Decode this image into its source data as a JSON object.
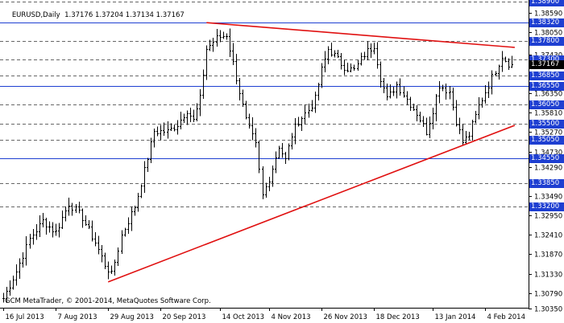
{
  "chart_header": {
    "symbol_timeframe": "EURUSD,Daily",
    "ohlc": "1.37176 1.37204 1.37134 1.37167"
  },
  "footer_text": "GCM MetaTrader, © 2001-2014, MetaQuotes Software Corp.",
  "colors": {
    "background": "#ffffff",
    "bars": "#000000",
    "horizontal_lines": "#1e3fd1",
    "trend_lines": "#e01010",
    "price_tag_bg": "#1e3fd1",
    "price_tag_text": "#ffffff",
    "current_price_bg": "#000000",
    "grid": "#808080"
  },
  "chart_data": {
    "type": "ohlc",
    "symbol": "EURUSD",
    "timeframe": "Daily",
    "ylim": [
      1.3038,
      1.3895
    ],
    "price_axis_ticks": [
      "1.38590",
      "1.38050",
      "1.37430",
      "1.36890",
      "1.36350",
      "1.35810",
      "1.35270",
      "1.34730",
      "1.34290",
      "1.33490",
      "1.32950",
      "1.32410",
      "1.31870",
      "1.31330",
      "1.30790",
      "1.30350"
    ],
    "time_axis_labels": [
      "16 Jul 2013",
      "7 Aug 2013",
      "29 Aug 2013",
      "20 Sep 2013",
      "14 Oct 2013",
      "4 Nov 2013",
      "26 Nov 2013",
      "18 Dec 2013",
      "13 Jan 2014",
      "4 Feb 2014"
    ],
    "time_axis_label_bars": [
      0,
      16,
      32,
      48,
      66,
      81,
      97,
      113,
      131,
      147
    ],
    "horizontal_levels": [
      {
        "price": 1.389,
        "label": "1.38900",
        "line": "dashed"
      },
      {
        "price": 1.3832,
        "label": "1.38320",
        "line": "solid"
      },
      {
        "price": 1.378,
        "label": "1.37800",
        "line": "dashed"
      },
      {
        "price": 1.373,
        "label": "1.37300",
        "line": "dashed"
      },
      {
        "price": 1.3685,
        "label": "1.36850",
        "line": "dashed"
      },
      {
        "price": 1.3655,
        "label": "1.36550",
        "line": "solid"
      },
      {
        "price": 1.3605,
        "label": "1.36050",
        "line": "dashed"
      },
      {
        "price": 1.355,
        "label": "1.35500",
        "line": "dashed"
      },
      {
        "price": 1.3505,
        "label": "1.35050",
        "line": "dashed"
      },
      {
        "price": 1.3455,
        "label": "1.34550",
        "line": "solid"
      },
      {
        "price": 1.3385,
        "label": "1.33850",
        "line": "dashed"
      },
      {
        "price": 1.332,
        "label": "1.33200",
        "line": "dashed"
      }
    ],
    "current_price": {
      "price": 1.37167,
      "label": "1.37167"
    },
    "trend_lines": [
      {
        "name": "resistance",
        "start": {
          "bar": 62,
          "price": 1.3832
        },
        "end": {
          "bar": 156,
          "price": 1.3763
        }
      },
      {
        "name": "support",
        "start": {
          "bar": 32,
          "price": 1.311
        },
        "end": {
          "bar": 156,
          "price": 1.3546
        }
      }
    ],
    "close_anchors": [
      [
        0,
        1.3065
      ],
      [
        4,
        1.314
      ],
      [
        8,
        1.323
      ],
      [
        12,
        1.328
      ],
      [
        16,
        1.325
      ],
      [
        20,
        1.333
      ],
      [
        24,
        1.329
      ],
      [
        28,
        1.322
      ],
      [
        31,
        1.316
      ],
      [
        33,
        1.313
      ],
      [
        36,
        1.324
      ],
      [
        40,
        1.332
      ],
      [
        43,
        1.342
      ],
      [
        46,
        1.353
      ],
      [
        50,
        1.353
      ],
      [
        53,
        1.355
      ],
      [
        56,
        1.359
      ],
      [
        58,
        1.356
      ],
      [
        60,
        1.362
      ],
      [
        62,
        1.376
      ],
      [
        65,
        1.379
      ],
      [
        68,
        1.38
      ],
      [
        71,
        1.368
      ],
      [
        74,
        1.356
      ],
      [
        77,
        1.349
      ],
      [
        79,
        1.335
      ],
      [
        81,
        1.34
      ],
      [
        84,
        1.349
      ],
      [
        86,
        1.345
      ],
      [
        88,
        1.352
      ],
      [
        90,
        1.356
      ],
      [
        93,
        1.359
      ],
      [
        95,
        1.362
      ],
      [
        97,
        1.37
      ],
      [
        99,
        1.376
      ],
      [
        101,
        1.374
      ],
      [
        104,
        1.371
      ],
      [
        107,
        1.37
      ],
      [
        110,
        1.3745
      ],
      [
        113,
        1.377
      ],
      [
        115,
        1.368
      ],
      [
        117,
        1.362
      ],
      [
        120,
        1.366
      ],
      [
        123,
        1.362
      ],
      [
        126,
        1.358
      ],
      [
        129,
        1.353
      ],
      [
        131,
        1.359
      ],
      [
        133,
        1.366
      ],
      [
        136,
        1.364
      ],
      [
        138,
        1.356
      ],
      [
        140,
        1.35
      ],
      [
        142,
        1.352
      ],
      [
        145,
        1.36
      ],
      [
        148,
        1.366
      ],
      [
        150,
        1.37
      ],
      [
        152,
        1.374
      ],
      [
        154,
        1.372
      ],
      [
        155,
        1.3717
      ]
    ]
  }
}
